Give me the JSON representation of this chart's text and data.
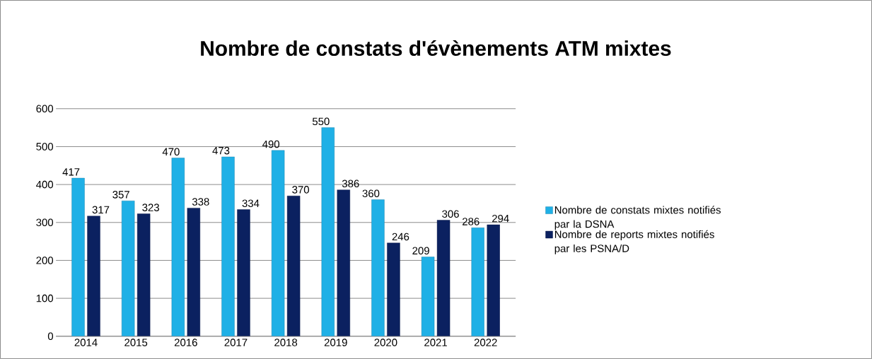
{
  "chart_data": {
    "type": "bar",
    "title": "Nombre de constats d'évènements ATM mixtes",
    "categories": [
      "2014",
      "2015",
      "2016",
      "2017",
      "2018",
      "2019",
      "2020",
      "2021",
      "2022"
    ],
    "series": [
      {
        "name": "Nombre de constats mixtes notifiés par la DSNA",
        "color": "#1fb0e6",
        "values": [
          417,
          357,
          470,
          473,
          490,
          550,
          360,
          209,
          286
        ]
      },
      {
        "name": "Nombre de reports mixtes notifiés par les PSNA/D",
        "color": "#0b2160",
        "values": [
          317,
          323,
          338,
          334,
          370,
          386,
          246,
          306,
          294
        ]
      }
    ],
    "ylim": [
      0,
      600
    ],
    "yticks": [
      0,
      100,
      200,
      300,
      400,
      500,
      600
    ],
    "grid": "y",
    "legend": "right",
    "data_labels": true
  }
}
